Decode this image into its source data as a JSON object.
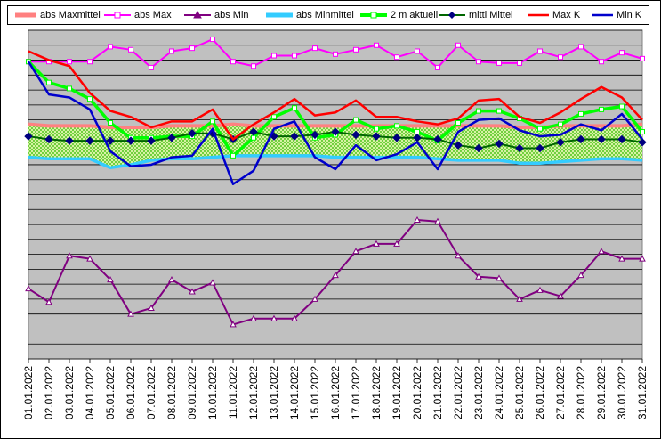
{
  "chart_data": {
    "type": "line",
    "title": "",
    "xlabel": "",
    "ylabel": "",
    "categories": [
      "01.01.2022",
      "02.01.2022",
      "03.01.2022",
      "04.01.2022",
      "05.01.2022",
      "06.01.2022",
      "07.01.2022",
      "08.01.2022",
      "09.01.2022",
      "10.01.2022",
      "11.01.2022",
      "12.01.2022",
      "13.01.2022",
      "14.01.2022",
      "15.01.2022",
      "16.01.2022",
      "17.01.2022",
      "18.01.2022",
      "19.01.2022",
      "20.01.2022",
      "21.01.2022",
      "22.01.2022",
      "23.01.2022",
      "24.01.2022",
      "25.01.2022",
      "26.01.2022",
      "27.01.2022",
      "28.01.2022",
      "29.01.2022",
      "30.01.2022",
      "31.01.2022"
    ],
    "y_scale": "unlabeled (no tick labels printed); values read in gridline units, 0 = bottom, 22 = top",
    "ylim": [
      0,
      22
    ],
    "grid": true,
    "legend_position": "top",
    "background": "#c0c0c0",
    "series": [
      {
        "name": "abs Maxmittel",
        "color": "#ff8080",
        "style": "thick",
        "values": [
          15.7,
          15.6,
          15.6,
          15.6,
          15.5,
          15.5,
          15.5,
          15.6,
          15.6,
          15.6,
          15.7,
          15.6,
          15.6,
          15.6,
          15.6,
          15.6,
          15.6,
          15.6,
          15.6,
          15.6,
          15.6,
          15.6,
          15.6,
          15.6,
          15.5,
          15.5,
          15.6,
          15.6,
          15.6,
          15.6,
          15.7
        ]
      },
      {
        "name": "abs Max",
        "color": "#ff00ff",
        "marker": "square",
        "values": [
          19.9,
          19.9,
          19.9,
          19.9,
          20.9,
          20.7,
          19.5,
          20.6,
          20.8,
          21.4,
          19.9,
          19.6,
          20.3,
          20.3,
          20.8,
          20.4,
          20.7,
          21.0,
          20.2,
          20.6,
          19.5,
          21.0,
          19.9,
          19.8,
          19.8,
          20.6,
          20.2,
          20.9,
          19.9,
          20.5,
          20.1
        ]
      },
      {
        "name": "abs Min",
        "color": "#800080",
        "marker": "triangle",
        "values": [
          4.7,
          3.8,
          6.9,
          6.7,
          5.3,
          3.0,
          3.4,
          5.3,
          4.5,
          5.1,
          2.3,
          2.7,
          2.7,
          2.7,
          4.0,
          5.6,
          7.2,
          7.7,
          7.7,
          9.3,
          9.2,
          6.9,
          5.5,
          5.4,
          4.0,
          4.6,
          4.2,
          5.6,
          7.2,
          6.7,
          6.7
        ]
      },
      {
        "name": "abs Minmittel",
        "color": "#33ccff",
        "style": "thick",
        "values": [
          13.5,
          13.4,
          13.4,
          13.4,
          12.8,
          13.0,
          13.3,
          13.4,
          13.4,
          13.5,
          13.6,
          13.6,
          13.6,
          13.6,
          13.6,
          13.5,
          13.5,
          13.5,
          13.5,
          13.5,
          13.4,
          13.3,
          13.3,
          13.3,
          13.1,
          13.1,
          13.2,
          13.3,
          13.4,
          13.4,
          13.3
        ]
      },
      {
        "name": "2 m aktuell",
        "color": "#00ff00",
        "marker": "square",
        "style": "thick",
        "values": [
          19.9,
          18.5,
          18.1,
          17.4,
          15.8,
          14.8,
          14.8,
          14.9,
          14.9,
          15.9,
          13.6,
          14.8,
          16.2,
          16.8,
          14.8,
          15.0,
          16.0,
          15.4,
          15.6,
          15.2,
          14.6,
          15.8,
          16.6,
          16.6,
          16.1,
          15.4,
          15.7,
          16.4,
          16.7,
          16.9,
          15.2
        ]
      },
      {
        "name": "mittl Mittel",
        "color": "#006600",
        "marker": "diamond",
        "marker_color": "#000080",
        "values": [
          14.9,
          14.7,
          14.6,
          14.6,
          14.6,
          14.6,
          14.6,
          14.8,
          15.1,
          15.1,
          14.7,
          15.2,
          14.9,
          14.9,
          15.0,
          15.2,
          15.0,
          14.9,
          14.8,
          14.8,
          14.7,
          14.3,
          14.1,
          14.4,
          14.1,
          14.1,
          14.5,
          14.7,
          14.7,
          14.7,
          14.5
        ]
      },
      {
        "name": "Max K",
        "color": "#ff0000",
        "values": [
          20.6,
          20.0,
          19.6,
          17.8,
          16.6,
          16.2,
          15.5,
          15.9,
          15.9,
          16.7,
          14.7,
          15.7,
          16.5,
          17.4,
          16.3,
          16.5,
          17.3,
          16.2,
          16.2,
          15.9,
          15.7,
          16.1,
          17.3,
          17.4,
          16.2,
          15.8,
          16.5,
          17.4,
          18.2,
          17.5,
          16.0
        ]
      },
      {
        "name": "Min K",
        "color": "#0000cc",
        "values": [
          19.9,
          17.7,
          17.5,
          16.7,
          13.9,
          12.9,
          13.0,
          13.5,
          13.6,
          15.4,
          11.7,
          12.6,
          15.4,
          15.9,
          13.5,
          12.7,
          14.3,
          13.3,
          13.7,
          14.5,
          12.7,
          15.2,
          16.0,
          16.1,
          15.3,
          14.9,
          15.0,
          15.7,
          15.3,
          16.4,
          14.7
        ]
      }
    ]
  }
}
